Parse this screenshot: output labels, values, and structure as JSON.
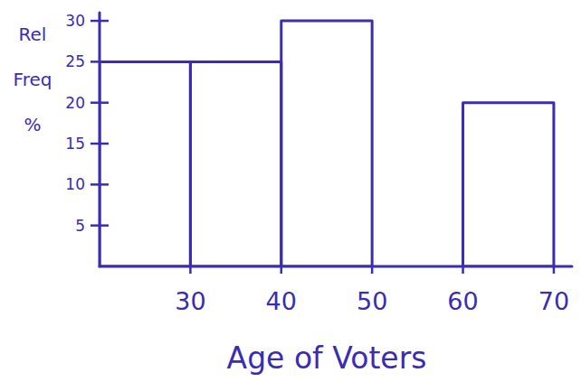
{
  "chart_data": {
    "type": "histogram",
    "x_label": "Age of Voters",
    "y_label": "Rel Freq %",
    "bins": [
      20,
      30,
      40,
      50,
      60,
      70
    ],
    "values": [
      25,
      25,
      30,
      0,
      20
    ],
    "color": "#3b2db0",
    "xlim": [
      20,
      72
    ],
    "ylim": [
      0,
      31
    ],
    "xticks": [
      30,
      40,
      50,
      60,
      70
    ],
    "yticks": [
      5,
      10,
      15,
      20,
      25,
      30
    ],
    "grid": false
  }
}
